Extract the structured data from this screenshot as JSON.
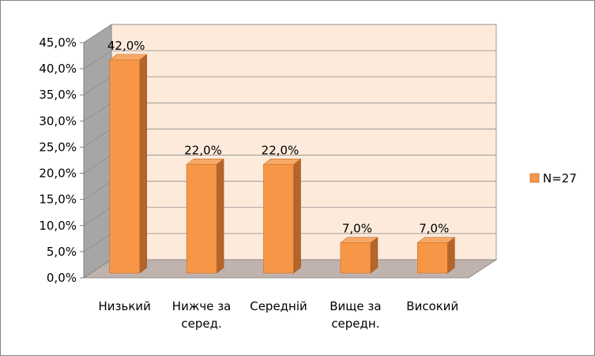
{
  "chart_data": {
    "type": "bar",
    "categories": [
      [
        "Низький"
      ],
      [
        "Нижче за",
        "серед."
      ],
      [
        "Середній"
      ],
      [
        "Вище за",
        "середн."
      ],
      [
        "Високий"
      ]
    ],
    "series": [
      {
        "name": "N=27",
        "values": [
          42.0,
          22.0,
          22.0,
          7.0,
          7.0
        ]
      }
    ],
    "data_labels": [
      "42,0%",
      "22,0%",
      "22,0%",
      "7,0%",
      "7,0%"
    ],
    "y_ticks": [
      "0,0%",
      "5,0%",
      "10,0%",
      "15,0%",
      "20,0%",
      "25,0%",
      "30,0%",
      "35,0%",
      "40,0%",
      "45,0%"
    ],
    "ylim": [
      0,
      45
    ],
    "grid": true,
    "legend_position": "right",
    "colors": {
      "bar_front": "#F79646",
      "bar_side": "#B5652A",
      "bar_top": "#F8A866",
      "back_wall": "#FDEADA",
      "side_wall": "#A6A6A6",
      "floor": "#C0B3AE"
    }
  }
}
